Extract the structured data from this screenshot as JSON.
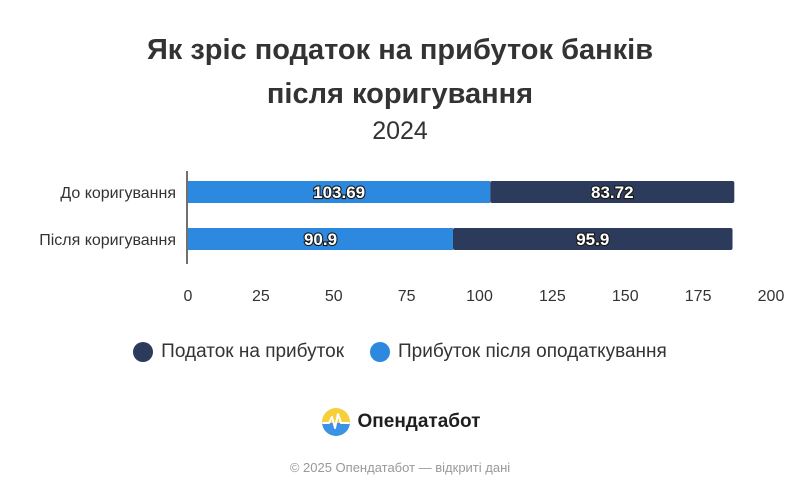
{
  "chart_data": {
    "type": "bar",
    "orientation": "horizontal",
    "stacked": true,
    "title_lines": [
      "Як зріс податок на прибуток банків",
      "після коригування"
    ],
    "subtitle": "2024",
    "categories": [
      "До коригування",
      "Після коригування"
    ],
    "series": [
      {
        "name": "Прибуток після оподаткування",
        "color": "#2d89e0",
        "values": [
          103.69,
          90.9
        ]
      },
      {
        "name": "Податок на прибуток",
        "color": "#2c3a5c",
        "values": [
          83.72,
          95.9
        ]
      }
    ],
    "legend_order": [
      1,
      0
    ],
    "xlim": [
      0,
      200
    ],
    "xticks": [
      "0",
      "25",
      "50",
      "75",
      "100",
      "125",
      "150",
      "175",
      "200"
    ],
    "grid": false,
    "legend_position": "bottom"
  },
  "branding": {
    "logo_text": "Опендатабот",
    "logo_icon": "sun-icon",
    "footer": "© 2025 Опендатабот — відкриті дані"
  }
}
